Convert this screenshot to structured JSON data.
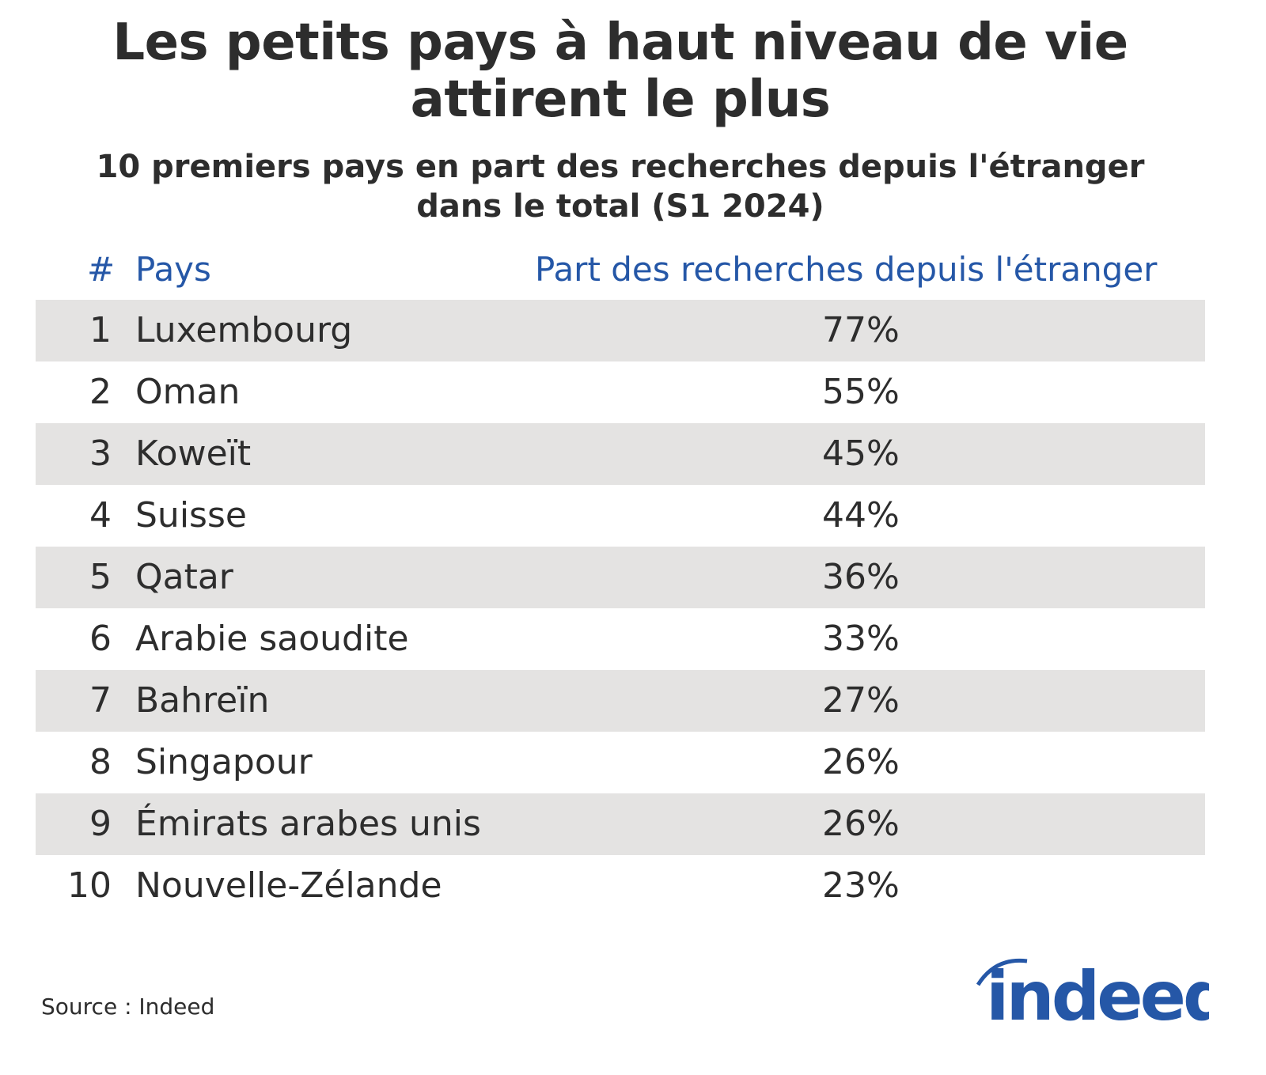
{
  "title": "Les petits pays à haut niveau de vie attirent le plus",
  "title_lines": [
    "Les petits pays à haut niveau de vie",
    "attirent le plus"
  ],
  "subtitle_lines": [
    "10 premiers pays en part des recherches depuis l'étranger",
    "dans le total (S1 2024)"
  ],
  "chart_data": {
    "type": "table",
    "columns": [
      "#",
      "Pays",
      "Part des recherches depuis l'étranger"
    ],
    "rows": [
      {
        "rank": "1",
        "country": "Luxembourg",
        "share": "77%"
      },
      {
        "rank": "2",
        "country": "Oman",
        "share": "55%"
      },
      {
        "rank": "3",
        "country": "Koweït",
        "share": "45%"
      },
      {
        "rank": "4",
        "country": "Suisse",
        "share": "44%"
      },
      {
        "rank": "5",
        "country": "Qatar",
        "share": "36%"
      },
      {
        "rank": "6",
        "country": "Arabie saoudite",
        "share": "33%"
      },
      {
        "rank": "7",
        "country": "Bahreïn",
        "share": "27%"
      },
      {
        "rank": "8",
        "country": "Singapour",
        "share": "26%"
      },
      {
        "rank": "9",
        "country": "Émirats arabes unis",
        "share": "26%"
      },
      {
        "rank": "10",
        "country": "Nouvelle-Zélande",
        "share": "23%"
      }
    ]
  },
  "source": "Source : Indeed",
  "logo": {
    "text": "indeed",
    "color": "#2557a7"
  },
  "colors": {
    "header": "#2557a7",
    "stripe": "#e4e3e2",
    "text": "#2d2d2d"
  }
}
